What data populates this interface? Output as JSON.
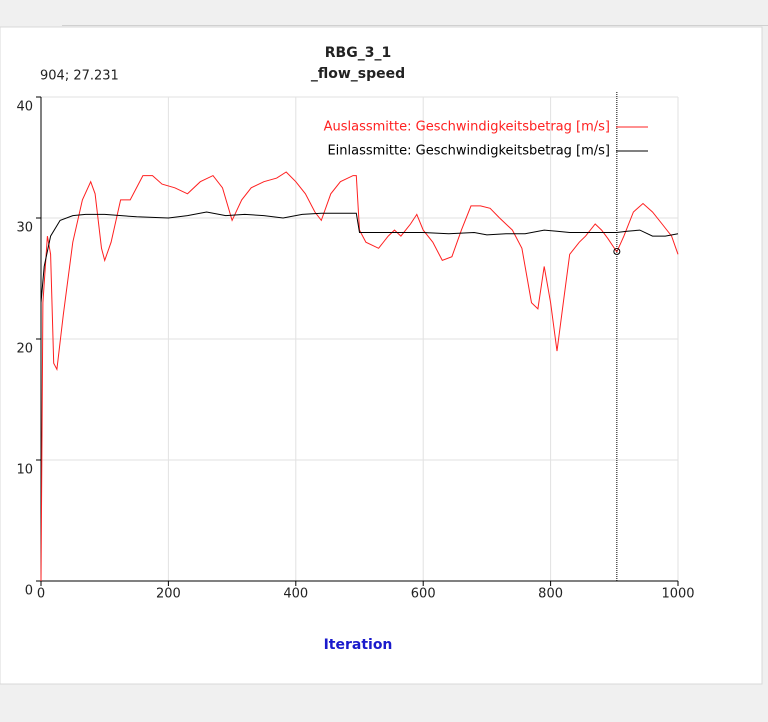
{
  "chart_data": {
    "type": "line",
    "title": "RBG_3_1",
    "subtitle": "_flow_speed",
    "xlabel": "Iteration",
    "cursor_label": "904; 27.231",
    "cursor_x": 904,
    "cursor_y": 27.231,
    "xlim": [
      0,
      1000
    ],
    "xticks": [
      0,
      200,
      400,
      600,
      800,
      1000
    ],
    "ylim": [
      0,
      40
    ],
    "yticks": [
      0,
      10,
      20,
      30,
      40
    ],
    "grid": true,
    "legend": "upper right",
    "series": [
      {
        "name": "Auslassmitte: Geschwindigkeitsbetrag [m/s]",
        "color": "#ff2020",
        "x": [
          0,
          3,
          10,
          15,
          20,
          25,
          35,
          50,
          65,
          78,
          85,
          95,
          100,
          110,
          125,
          140,
          160,
          175,
          190,
          210,
          230,
          250,
          270,
          285,
          300,
          315,
          330,
          350,
          370,
          385,
          400,
          415,
          430,
          440,
          455,
          470,
          490,
          495,
          500,
          510,
          530,
          545,
          555,
          565,
          580,
          590,
          600,
          615,
          630,
          645,
          660,
          675,
          690,
          705,
          720,
          740,
          755,
          770,
          780,
          790,
          800,
          810,
          820,
          830,
          845,
          855,
          870,
          880,
          890,
          904,
          915,
          930,
          945,
          960,
          975,
          990,
          1000
        ],
        "values": [
          0,
          23,
          28.5,
          27,
          18,
          17.5,
          22,
          28,
          31.5,
          33,
          32,
          27.5,
          26.5,
          28,
          31.5,
          31.5,
          33.5,
          33.5,
          32.8,
          32.5,
          32,
          33,
          33.5,
          32.5,
          29.8,
          31.5,
          32.5,
          33,
          33.3,
          33.8,
          33,
          32,
          30.5,
          29.8,
          32,
          33,
          33.5,
          33.5,
          29,
          28,
          27.5,
          28.5,
          29,
          28.5,
          29.5,
          30.3,
          29,
          28,
          26.5,
          26.8,
          29,
          31,
          31,
          30.8,
          30,
          29,
          27.5,
          23,
          22.5,
          26,
          23,
          19,
          23,
          27,
          28,
          28.5,
          29.5,
          29,
          28.3,
          27.2,
          28.5,
          30.5,
          31.2,
          30.5,
          29.5,
          28.5,
          27
        ]
      },
      {
        "name": "Einlassmitte: Geschwindigkeitsbetrag [m/s]",
        "color": "#000000",
        "x": [
          0,
          5,
          15,
          30,
          50,
          70,
          100,
          150,
          200,
          230,
          260,
          290,
          320,
          350,
          380,
          410,
          440,
          495,
          500,
          550,
          600,
          640,
          680,
          700,
          730,
          760,
          790,
          810,
          830,
          860,
          890,
          904,
          920,
          940,
          960,
          980,
          1000
        ],
        "values": [
          23,
          26,
          28.5,
          29.8,
          30.2,
          30.3,
          30.3,
          30.1,
          30,
          30.2,
          30.5,
          30.2,
          30.3,
          30.2,
          30,
          30.3,
          30.4,
          30.4,
          28.8,
          28.8,
          28.8,
          28.7,
          28.8,
          28.6,
          28.7,
          28.7,
          29,
          28.9,
          28.8,
          28.8,
          28.8,
          28.8,
          28.9,
          29,
          28.5,
          28.5,
          28.7
        ]
      }
    ]
  }
}
